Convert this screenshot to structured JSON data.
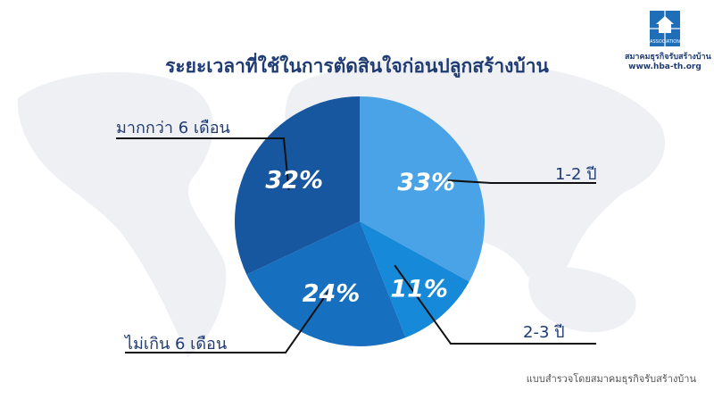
{
  "header": {
    "title": "ระยะเวลาที่ใช้ในการตัดสินใจก่อนปลูกสร้างบ้าน"
  },
  "logo": {
    "mark_text": "ASSOCIATION",
    "name": "สมาคมธุรกิจรับสร้างบ้าน",
    "url": "www.hba-th.org"
  },
  "footnote": "แบบสำรวจโดยสมาคมธุรกิจรับสร้างบ้าน",
  "colors": {
    "title": "#1f3b73",
    "map": "#eef0f4",
    "slice_1_2_years": "#4aa3e6",
    "slice_2_3_years": "#168ad8",
    "slice_under_6_months": "#176fbf",
    "slice_over_6_months": "#17579f"
  },
  "chart_data": {
    "type": "pie",
    "title": "ระยะเวลาที่ใช้ในการตัดสินใจก่อนปลูกสร้างบ้าน",
    "slices": [
      {
        "label": "1-2 ปี",
        "value": 33,
        "value_label": "33%",
        "color": "#4aa3e6"
      },
      {
        "label": "2-3 ปี",
        "value": 11,
        "value_label": "11%",
        "color": "#168ad8"
      },
      {
        "label": "ไม่เกิน 6 เดือน",
        "value": 24,
        "value_label": "24%",
        "color": "#176fbf"
      },
      {
        "label": "มากกว่า 6 เดือน",
        "value": 32,
        "value_label": "32%",
        "color": "#17579f"
      }
    ]
  }
}
